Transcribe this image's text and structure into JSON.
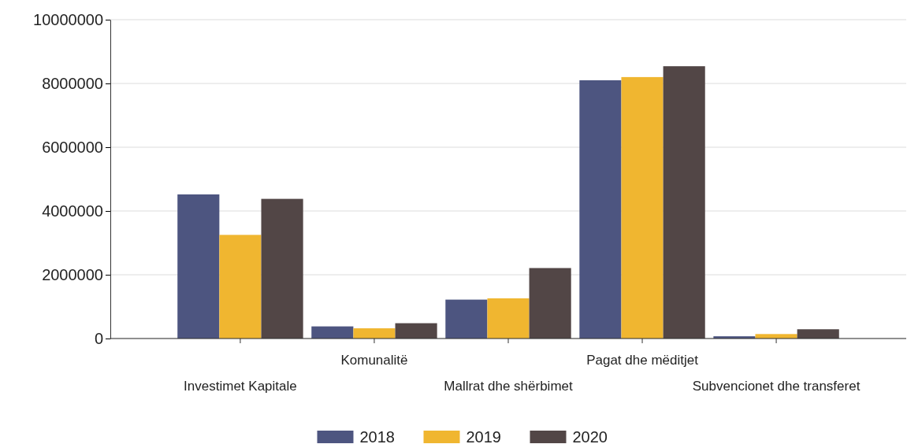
{
  "chart_data": {
    "type": "bar",
    "categories": [
      "Investimet Kapitale",
      "Komunalitë",
      "Mallrat dhe shërbimet",
      "Pagat dhe mëditjet",
      "Subvencionet dhe transferet"
    ],
    "series": [
      {
        "name": "2018",
        "color": "#4d5580",
        "values": [
          4520000,
          380000,
          1220000,
          8100000,
          70000
        ]
      },
      {
        "name": "2019",
        "color": "#f0b630",
        "values": [
          3250000,
          320000,
          1260000,
          8200000,
          140000
        ]
      },
      {
        "name": "2020",
        "color": "#524646",
        "values": [
          4380000,
          480000,
          2210000,
          8540000,
          290000
        ]
      }
    ],
    "ylim": [
      0,
      10000000
    ],
    "yticks": [
      0,
      2000000,
      4000000,
      6000000,
      8000000,
      10000000
    ],
    "grid": "y",
    "legend": "bottom"
  }
}
